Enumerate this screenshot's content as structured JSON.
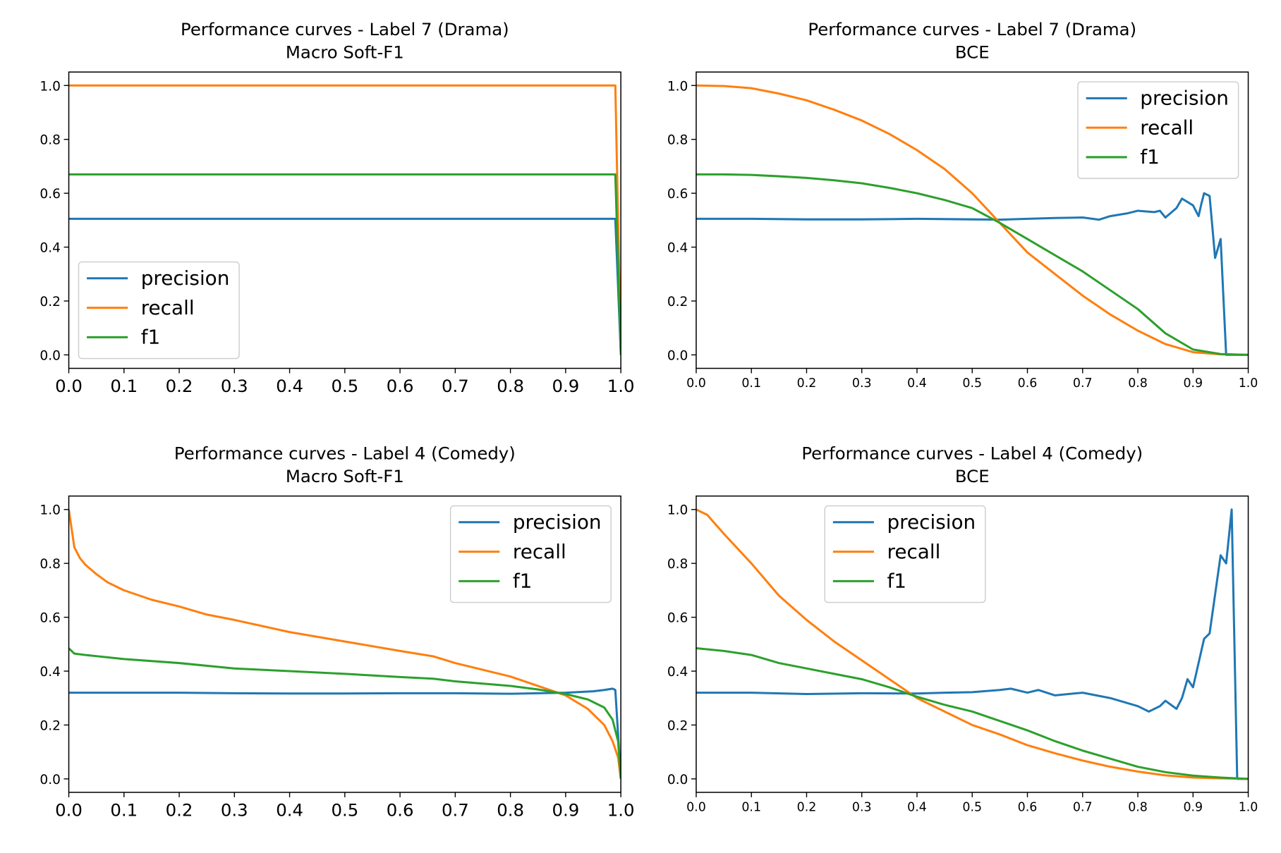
{
  "colors": {
    "precision": "#1f77b4",
    "recall": "#ff7f0e",
    "f1": "#2ca02c",
    "axes": "#000000",
    "legend_border": "#cccccc"
  },
  "chart_data": [
    {
      "type": "line",
      "title": "Performance curves - Label 7 (Drama)",
      "subtitle": "Macro Soft-F1",
      "xlim": [
        0,
        1
      ],
      "ylim": [
        -0.05,
        1.05
      ],
      "xticks": [
        "0.0",
        "0.1",
        "0.2",
        "0.3",
        "0.4",
        "0.5",
        "0.6",
        "0.7",
        "0.8",
        "0.9",
        "1.0"
      ],
      "yticks": [
        "0.0",
        "0.2",
        "0.4",
        "0.6",
        "0.8",
        "1.0"
      ],
      "legend": "lower-left",
      "grid": false,
      "series": [
        {
          "name": "precision",
          "x": [
            0,
            0.98,
            0.99,
            1.0
          ],
          "y": [
            0.505,
            0.505,
            0.505,
            0.0
          ]
        },
        {
          "name": "recall",
          "x": [
            0,
            0.98,
            0.99,
            1.0
          ],
          "y": [
            1.0,
            1.0,
            1.0,
            0.0
          ]
        },
        {
          "name": "f1",
          "x": [
            0,
            0.98,
            0.99,
            1.0
          ],
          "y": [
            0.67,
            0.67,
            0.67,
            0.0
          ]
        }
      ]
    },
    {
      "type": "line",
      "title": "Performance curves - Label 7 (Drama)",
      "subtitle": "BCE",
      "xlim": [
        0,
        1
      ],
      "ylim": [
        -0.05,
        1.05
      ],
      "xticks": [
        "0.0",
        "0.1",
        "0.2",
        "0.3",
        "0.4",
        "0.5",
        "0.6",
        "0.7",
        "0.8",
        "0.9",
        "1.0"
      ],
      "yticks": [
        "0.0",
        "0.2",
        "0.4",
        "0.6",
        "0.8",
        "1.0"
      ],
      "legend": "upper-right",
      "grid": false,
      "series": [
        {
          "name": "precision",
          "x": [
            0,
            0.1,
            0.2,
            0.3,
            0.4,
            0.5,
            0.55,
            0.6,
            0.65,
            0.7,
            0.73,
            0.75,
            0.78,
            0.8,
            0.83,
            0.84,
            0.85,
            0.87,
            0.88,
            0.9,
            0.91,
            0.915,
            0.92,
            0.93,
            0.94,
            0.95,
            0.96,
            1.0
          ],
          "y": [
            0.505,
            0.505,
            0.503,
            0.503,
            0.505,
            0.503,
            0.502,
            0.505,
            0.508,
            0.51,
            0.502,
            0.515,
            0.525,
            0.535,
            0.53,
            0.535,
            0.51,
            0.545,
            0.58,
            0.555,
            0.515,
            0.56,
            0.6,
            0.59,
            0.36,
            0.43,
            0.0,
            0.0
          ]
        },
        {
          "name": "recall",
          "x": [
            0,
            0.05,
            0.1,
            0.15,
            0.2,
            0.25,
            0.3,
            0.35,
            0.4,
            0.45,
            0.5,
            0.55,
            0.6,
            0.65,
            0.7,
            0.75,
            0.8,
            0.85,
            0.9,
            0.95,
            1.0
          ],
          "y": [
            1.0,
            0.998,
            0.99,
            0.97,
            0.945,
            0.91,
            0.87,
            0.82,
            0.76,
            0.69,
            0.6,
            0.49,
            0.38,
            0.3,
            0.22,
            0.15,
            0.09,
            0.04,
            0.01,
            0.002,
            0.0
          ]
        },
        {
          "name": "f1",
          "x": [
            0,
            0.05,
            0.1,
            0.15,
            0.2,
            0.25,
            0.3,
            0.35,
            0.4,
            0.45,
            0.5,
            0.55,
            0.6,
            0.65,
            0.7,
            0.75,
            0.8,
            0.85,
            0.9,
            0.95,
            1.0
          ],
          "y": [
            0.67,
            0.67,
            0.668,
            0.663,
            0.657,
            0.648,
            0.637,
            0.62,
            0.6,
            0.575,
            0.545,
            0.49,
            0.43,
            0.37,
            0.31,
            0.24,
            0.17,
            0.08,
            0.02,
            0.003,
            0.0
          ]
        }
      ]
    },
    {
      "type": "line",
      "title": "Performance curves - Label 4 (Comedy)",
      "subtitle": "Macro Soft-F1",
      "xlim": [
        0,
        1
      ],
      "ylim": [
        -0.05,
        1.05
      ],
      "xticks": [
        "0.0",
        "0.1",
        "0.2",
        "0.3",
        "0.4",
        "0.5",
        "0.6",
        "0.7",
        "0.8",
        "0.9",
        "1.0"
      ],
      "yticks": [
        "0.0",
        "0.2",
        "0.4",
        "0.6",
        "0.8",
        "1.0"
      ],
      "legend": "upper-right",
      "grid": false,
      "series": [
        {
          "name": "precision",
          "x": [
            0,
            0.1,
            0.2,
            0.3,
            0.4,
            0.5,
            0.6,
            0.7,
            0.8,
            0.85,
            0.9,
            0.95,
            0.97,
            0.985,
            0.99,
            1.0
          ],
          "y": [
            0.32,
            0.32,
            0.32,
            0.318,
            0.317,
            0.317,
            0.318,
            0.318,
            0.316,
            0.318,
            0.32,
            0.325,
            0.33,
            0.335,
            0.33,
            0.0
          ]
        },
        {
          "name": "recall",
          "x": [
            0,
            0.01,
            0.02,
            0.03,
            0.05,
            0.07,
            0.1,
            0.15,
            0.2,
            0.25,
            0.3,
            0.4,
            0.5,
            0.6,
            0.66,
            0.7,
            0.8,
            0.85,
            0.9,
            0.94,
            0.97,
            0.985,
            0.995,
            1.0
          ],
          "y": [
            1.0,
            0.86,
            0.82,
            0.795,
            0.76,
            0.73,
            0.7,
            0.665,
            0.64,
            0.61,
            0.59,
            0.545,
            0.51,
            0.475,
            0.455,
            0.43,
            0.38,
            0.345,
            0.31,
            0.26,
            0.2,
            0.14,
            0.08,
            0.0
          ]
        },
        {
          "name": "f1",
          "x": [
            0,
            0.01,
            0.03,
            0.1,
            0.2,
            0.3,
            0.4,
            0.5,
            0.6,
            0.66,
            0.7,
            0.8,
            0.85,
            0.9,
            0.94,
            0.97,
            0.985,
            0.995,
            1.0
          ],
          "y": [
            0.485,
            0.465,
            0.46,
            0.445,
            0.43,
            0.41,
            0.4,
            0.39,
            0.378,
            0.372,
            0.362,
            0.345,
            0.332,
            0.315,
            0.295,
            0.265,
            0.22,
            0.14,
            0.0
          ]
        }
      ]
    },
    {
      "type": "line",
      "title": "Performance curves - Label 4 (Comedy)",
      "subtitle": "BCE",
      "xlim": [
        0,
        1
      ],
      "ylim": [
        -0.05,
        1.05
      ],
      "xticks": [
        "0.0",
        "0.1",
        "0.2",
        "0.3",
        "0.4",
        "0.5",
        "0.6",
        "0.7",
        "0.8",
        "0.9",
        "1.0"
      ],
      "yticks": [
        "0.0",
        "0.2",
        "0.4",
        "0.6",
        "0.8",
        "1.0"
      ],
      "legend": "upper-center",
      "grid": false,
      "series": [
        {
          "name": "precision",
          "x": [
            0,
            0.1,
            0.2,
            0.3,
            0.4,
            0.45,
            0.5,
            0.55,
            0.57,
            0.6,
            0.62,
            0.65,
            0.7,
            0.75,
            0.8,
            0.82,
            0.84,
            0.85,
            0.87,
            0.88,
            0.89,
            0.9,
            0.91,
            0.92,
            0.93,
            0.95,
            0.96,
            0.97,
            0.98,
            1.0
          ],
          "y": [
            0.32,
            0.32,
            0.315,
            0.318,
            0.317,
            0.32,
            0.322,
            0.33,
            0.335,
            0.32,
            0.33,
            0.31,
            0.32,
            0.3,
            0.27,
            0.25,
            0.27,
            0.29,
            0.26,
            0.3,
            0.37,
            0.34,
            0.43,
            0.52,
            0.54,
            0.83,
            0.8,
            1.0,
            0.0,
            0.0
          ]
        },
        {
          "name": "recall",
          "x": [
            0,
            0.02,
            0.05,
            0.1,
            0.15,
            0.2,
            0.25,
            0.3,
            0.35,
            0.4,
            0.45,
            0.5,
            0.55,
            0.6,
            0.65,
            0.7,
            0.75,
            0.8,
            0.85,
            0.9,
            0.95,
            1.0
          ],
          "y": [
            1.0,
            0.98,
            0.91,
            0.8,
            0.68,
            0.59,
            0.51,
            0.44,
            0.37,
            0.3,
            0.25,
            0.2,
            0.165,
            0.125,
            0.095,
            0.068,
            0.045,
            0.027,
            0.013,
            0.005,
            0.002,
            0.0
          ]
        },
        {
          "name": "f1",
          "x": [
            0,
            0.05,
            0.1,
            0.15,
            0.2,
            0.25,
            0.3,
            0.35,
            0.4,
            0.45,
            0.5,
            0.55,
            0.6,
            0.65,
            0.7,
            0.75,
            0.8,
            0.85,
            0.9,
            0.95,
            1.0
          ],
          "y": [
            0.485,
            0.475,
            0.46,
            0.43,
            0.41,
            0.39,
            0.37,
            0.34,
            0.305,
            0.275,
            0.25,
            0.215,
            0.18,
            0.14,
            0.105,
            0.075,
            0.045,
            0.025,
            0.012,
            0.005,
            0.0
          ]
        }
      ]
    }
  ]
}
